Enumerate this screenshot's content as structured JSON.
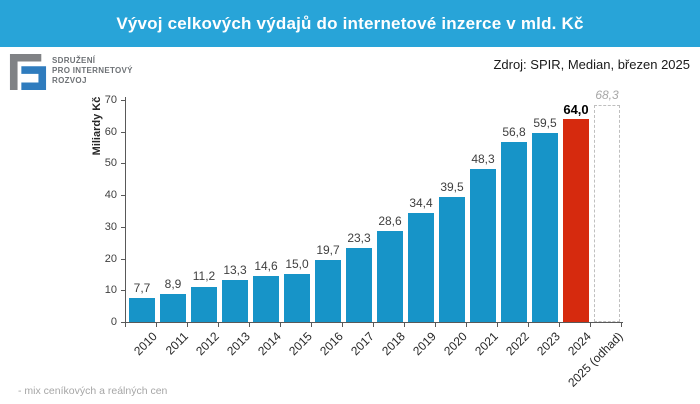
{
  "header": {
    "title": "Vývoj celkových výdajů do internetové inzerce v mld. Kč",
    "bg_color": "#28a4d8"
  },
  "logo": {
    "lines": [
      "SDRUŽENÍ",
      "PRO INTERNETOVÝ",
      "ROZVOJ"
    ],
    "gray_color": "#808285",
    "blue_color": "#2f7cbe"
  },
  "source": {
    "label": "Zdroj: SPIR, Median, březen 2025"
  },
  "footnote": "- mix ceníkových a reálných cen",
  "chart_data": {
    "type": "bar",
    "title": "Vývoj celkových výdajů do internetové inzerce v mld. Kč",
    "xlabel": "",
    "ylabel": "Miliardy Kč",
    "ylim": [
      0,
      70
    ],
    "ytick_step": 10,
    "grid": false,
    "legend": "none",
    "categories": [
      "2010",
      "2011",
      "2012",
      "2013",
      "2014",
      "2015",
      "2016",
      "2017",
      "2018",
      "2019",
      "2020",
      "2021",
      "2022",
      "2023",
      "2024",
      "2025 (odhad)"
    ],
    "values": [
      7.7,
      8.9,
      11.2,
      13.3,
      14.6,
      15.0,
      19.7,
      23.3,
      28.6,
      34.4,
      39.5,
      48.3,
      56.8,
      59.5,
      64.0,
      68.3
    ],
    "value_labels": [
      "7,7",
      "8,9",
      "11,2",
      "13,3",
      "14,6",
      "15,0",
      "19,7",
      "23,3",
      "28,6",
      "34,4",
      "39,5",
      "48,3",
      "56,8",
      "59,5",
      "64,0",
      "68,3"
    ],
    "bar_styles": [
      "blue",
      "blue",
      "blue",
      "blue",
      "blue",
      "blue",
      "blue",
      "blue",
      "blue",
      "blue",
      "blue",
      "blue",
      "blue",
      "blue",
      "red",
      "forecast"
    ],
    "label_styles": [
      "plain",
      "plain",
      "plain",
      "plain",
      "plain",
      "plain",
      "plain",
      "plain",
      "plain",
      "plain",
      "plain",
      "plain",
      "plain",
      "plain",
      "bold",
      "estimate"
    ],
    "colors": {
      "blue_bar": "#1794c8",
      "red_bar": "#d62a0e",
      "forecast_border": "#bfbfbf",
      "axis": "#595959"
    }
  }
}
